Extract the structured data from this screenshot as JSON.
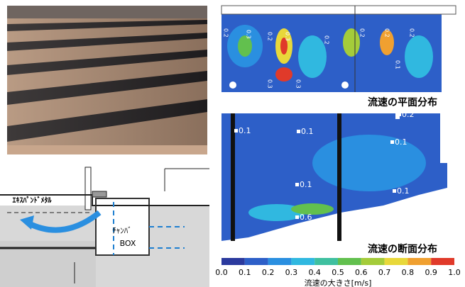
{
  "diagram": {
    "expanded_metal": "ｴｷｽﾊﾟﾝﾄﾞﾒﾀﾙ",
    "chamber": "ﾁｬﾝﾊﾞ",
    "box": "BOX"
  },
  "plane_plot": {
    "caption": "流速の平面分布",
    "contour_labels": [
      "0.2",
      "0.3",
      "0.2",
      "0.3",
      "0.2",
      "0.2",
      "0.2",
      "0.2",
      "0.3",
      "0.3",
      "0.1"
    ]
  },
  "section_plot": {
    "caption": "流速の断面分布",
    "contour_labels": [
      "0.1",
      "0.1",
      "0.1",
      "0.1",
      "0.1",
      "0.2",
      "0.6"
    ]
  },
  "colorbar": {
    "title": "流速の大きさ[m/s]",
    "ticks": [
      "0.0",
      "0.1",
      "0.2",
      "0.3",
      "0.4",
      "0.5",
      "0.6",
      "0.7",
      "0.8",
      "0.9",
      "1.0"
    ],
    "colors": [
      "#2b3a9e",
      "#2d5fc8",
      "#2a8fe0",
      "#30b8e0",
      "#3fc0a0",
      "#62c04e",
      "#a4cc3a",
      "#e8d83a",
      "#f0a030",
      "#e03a2a"
    ]
  }
}
